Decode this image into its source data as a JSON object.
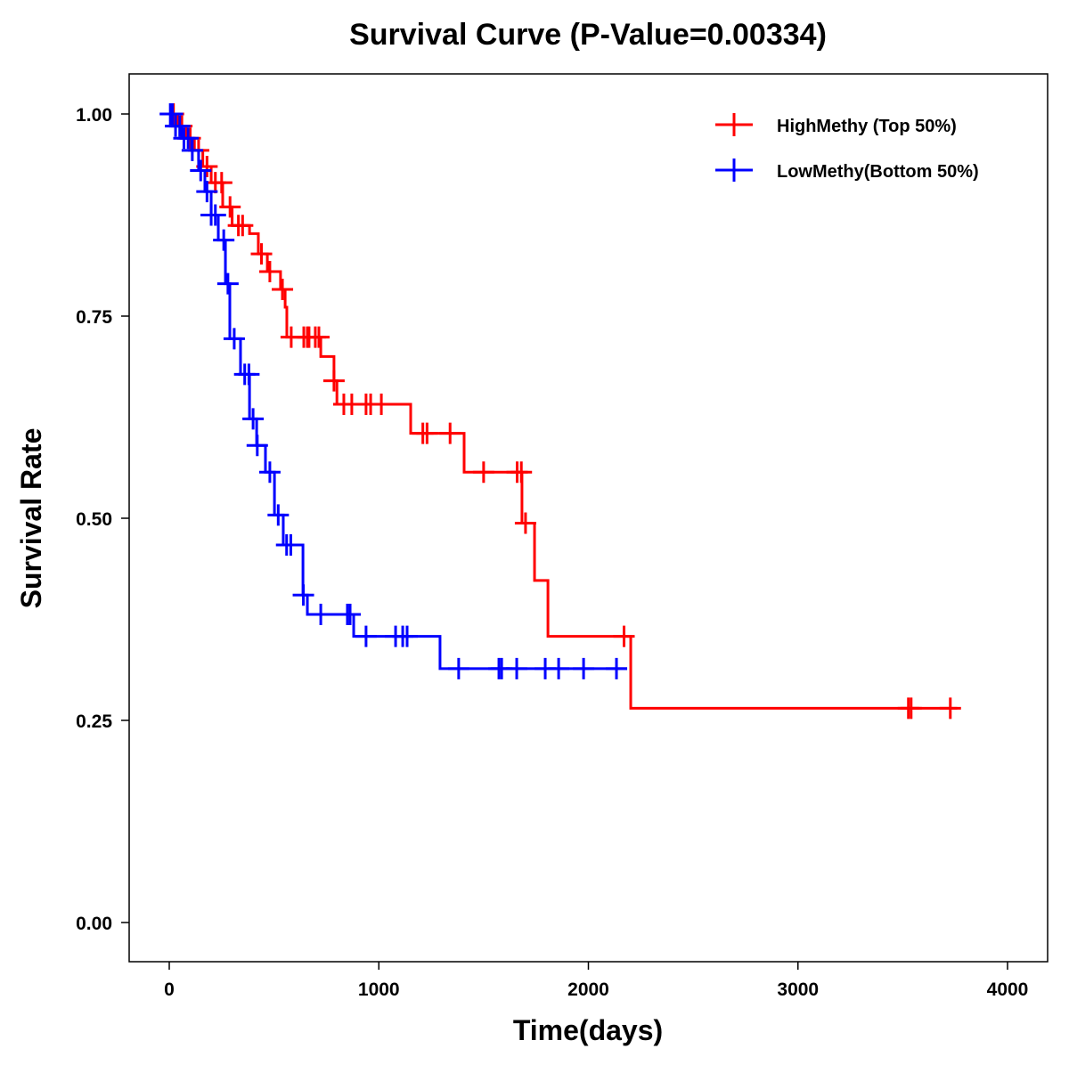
{
  "chart_data": {
    "type": "line",
    "subtype": "kaplan-meier",
    "title": "Survival Curve (P-Value=0.00334)",
    "xlabel": "Time(days)",
    "ylabel": "Survival Rate",
    "xlim": [
      -190,
      4180
    ],
    "ylim": [
      -0.05,
      1.05
    ],
    "xticks": [
      0,
      1000,
      2000,
      3000,
      4000
    ],
    "xtick_labels": [
      "0",
      "1000",
      "2000",
      "3000",
      "4000"
    ],
    "yticks": [
      0,
      0.25,
      0.5,
      0.75,
      1.0
    ],
    "ytick_labels": [
      "0.00",
      "0.25",
      "0.50",
      "0.75",
      "1.00"
    ],
    "grid": false,
    "legend_position": "top-right",
    "series": [
      {
        "name": "HighMethy (Top 50%)",
        "color": "#ff0000",
        "steps_t": [
          0,
          40,
          80,
          120,
          160,
          200,
          255,
          300,
          383,
          425,
          468,
          531,
          553,
          561,
          723,
          786,
          800,
          1152,
          1407,
          1683,
          1743,
          1807,
          2202
        ],
        "steps_s": [
          1.0,
          0.985,
          0.97,
          0.955,
          0.935,
          0.915,
          0.885,
          0.862,
          0.852,
          0.827,
          0.805,
          0.783,
          0.761,
          0.724,
          0.7,
          0.67,
          0.641,
          0.605,
          0.557,
          0.494,
          0.423,
          0.354,
          0.265
        ],
        "end_t": 3760,
        "censor_t": [
          20,
          60,
          100,
          140,
          180,
          220,
          250,
          290,
          330,
          350,
          440,
          480,
          540,
          582,
          642,
          659,
          667,
          697,
          714,
          786,
          833,
          871,
          939,
          961,
          1012,
          1210,
          1230,
          1340,
          1500,
          1660,
          1680,
          1700,
          2170,
          3527,
          3540,
          3727
        ]
      },
      {
        "name": "LowMethy(Bottom 50%)",
        "color": "#0000ff",
        "steps_t": [
          0,
          30,
          60,
          106,
          140,
          170,
          200,
          234,
          268,
          289,
          340,
          383,
          417,
          459,
          502,
          544,
          638,
          659,
          880,
          1292
        ],
        "steps_s": [
          1.0,
          0.985,
          0.97,
          0.955,
          0.93,
          0.904,
          0.875,
          0.844,
          0.79,
          0.722,
          0.678,
          0.623,
          0.59,
          0.557,
          0.504,
          0.467,
          0.405,
          0.381,
          0.354,
          0.314
        ],
        "end_t": 2185,
        "censor_t": [
          5,
          15,
          30,
          50,
          70,
          90,
          110,
          150,
          180,
          200,
          220,
          260,
          280,
          310,
          360,
          380,
          400,
          420,
          480,
          520,
          560,
          580,
          640,
          723,
          850,
          863,
          939,
          1080,
          1114,
          1135,
          1381,
          1573,
          1586,
          1658,
          1794,
          1858,
          1977,
          2134
        ]
      }
    ]
  }
}
